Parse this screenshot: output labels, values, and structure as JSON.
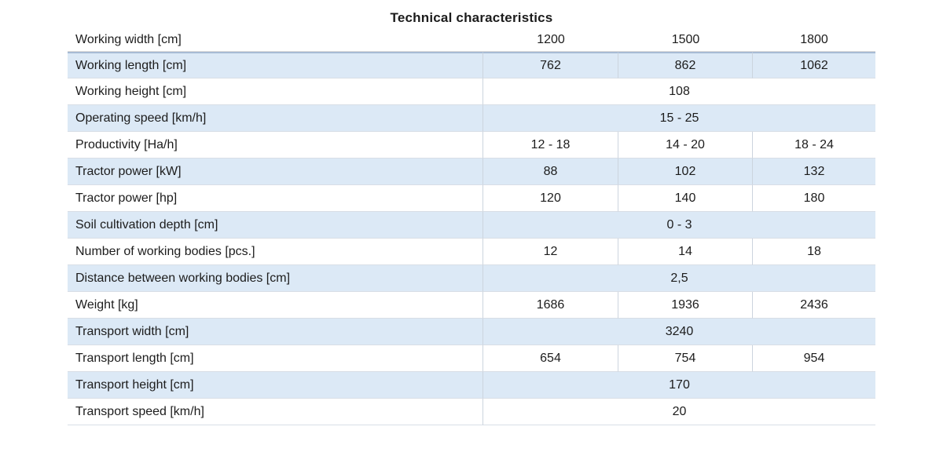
{
  "title": "Technical characteristics",
  "table": {
    "header": {
      "label": "Working width [cm]",
      "values": [
        "1200",
        "1500",
        "1800"
      ]
    },
    "rows": [
      {
        "label": "Working length [cm]",
        "span": false,
        "values": [
          "762",
          "862",
          "1062"
        ]
      },
      {
        "label": "Working height [cm]",
        "span": true,
        "values": [
          "108"
        ]
      },
      {
        "label": "Operating speed [km/h]",
        "span": true,
        "values": [
          "15 - 25"
        ]
      },
      {
        "label": "Productivity [Ha/h]",
        "span": false,
        "values": [
          "12 - 18",
          "14 - 20",
          "18 - 24"
        ]
      },
      {
        "label": "Tractor power [kW]",
        "span": false,
        "values": [
          "88",
          "102",
          "132"
        ]
      },
      {
        "label": "Tractor power [hp]",
        "span": false,
        "values": [
          "120",
          "140",
          "180"
        ]
      },
      {
        "label": "Soil cultivation depth [cm]",
        "span": true,
        "values": [
          "0 - 3"
        ]
      },
      {
        "label": "Number of working bodies [pcs.]",
        "span": false,
        "values": [
          "12",
          "14",
          "18"
        ]
      },
      {
        "label": "Distance between working bodies [cm]",
        "span": true,
        "values": [
          "2,5"
        ]
      },
      {
        "label": "Weight [kg]",
        "span": false,
        "values": [
          "1686",
          "1936",
          "2436"
        ]
      },
      {
        "label": "Transport width [cm]",
        "span": true,
        "values": [
          "3240"
        ]
      },
      {
        "label": "Transport length [cm]",
        "span": false,
        "values": [
          "654",
          "754",
          "954"
        ]
      },
      {
        "label": "Transport height [cm]",
        "span": true,
        "values": [
          "170"
        ]
      },
      {
        "label": "Transport speed [km/h]",
        "span": true,
        "values": [
          "20"
        ]
      }
    ]
  },
  "colors": {
    "stripe": "#dce9f6",
    "sep": "#a7bbd4",
    "rowline": "#d8dee6",
    "cellline": "#ccd4de",
    "text": "#1c1c1c",
    "bg": "#ffffff"
  }
}
